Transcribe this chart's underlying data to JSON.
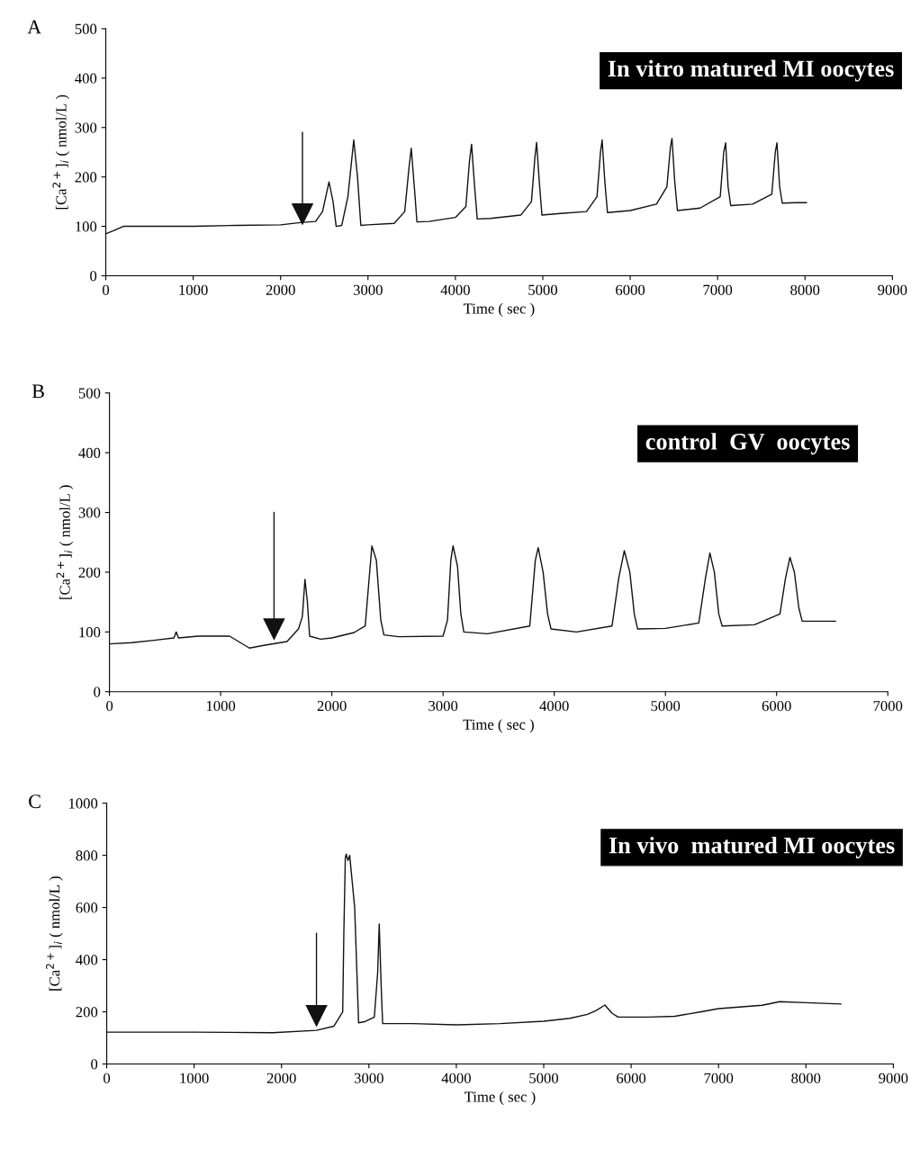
{
  "chart_data": [
    {
      "type": "line",
      "title": "In vitro matured MI oocytes",
      "xlabel": "Time ( sec )",
      "ylabel": "[Ca$^{2+}$]$_{i}$ ( nmol/L )",
      "xlim": [
        0,
        9000
      ],
      "xticks": [
        0,
        1000,
        2000,
        3000,
        4000,
        5000,
        6000,
        7000,
        8000,
        9000
      ],
      "ylim": [
        0,
        500
      ],
      "yticks": [
        0,
        100,
        200,
        300,
        400,
        500
      ],
      "grid": false,
      "legend": false,
      "annotations": [
        "A"
      ],
      "series": [
        {
          "color": "#111111",
          "marker": "triangle",
          "x": [
            2250,
            2250
          ],
          "values": [
            290,
            125
          ]
        },
        {
          "color": "#111111",
          "x": [
            0,
            100,
            200,
            500,
            1000,
            1500,
            2000,
            2250,
            2400,
            2480,
            2554,
            2600,
            2636,
            2700,
            2770,
            2837,
            2880,
            2918,
            3000,
            3300,
            3420,
            3470,
            3495,
            3530,
            3560,
            3700,
            4000,
            4120,
            4160,
            4185,
            4220,
            4250,
            4400,
            4750,
            4870,
            4910,
            4929,
            4960,
            4990,
            5200,
            5500,
            5620,
            5660,
            5679,
            5710,
            5740,
            6000,
            6300,
            6420,
            6460,
            6478,
            6510,
            6540,
            6800,
            7030,
            7070,
            7092,
            7120,
            7150,
            7400,
            7620,
            7660,
            7679,
            7710,
            7740,
            7900,
            8016
          ],
          "values": [
            85,
            92,
            100,
            100,
            100,
            102,
            103,
            108,
            110,
            130,
            190,
            150,
            100,
            102,
            160,
            275,
            200,
            102,
            103,
            106,
            130,
            220,
            258,
            180,
            109,
            110,
            118,
            140,
            230,
            266,
            180,
            115,
            116,
            123,
            150,
            240,
            270,
            190,
            123,
            126,
            130,
            160,
            250,
            275,
            190,
            128,
            132,
            145,
            180,
            260,
            278,
            190,
            132,
            137,
            160,
            250,
            269,
            180,
            142,
            145,
            165,
            250,
            269,
            180,
            147,
            148,
            148
          ]
        }
      ]
    },
    {
      "type": "line",
      "title": "control  GV  oocytes",
      "xlabel": "Time ( sec )",
      "ylabel": "[Ca$^{2+}$]$_{i}$ ( nmol/L )",
      "xlim": [
        0,
        7000
      ],
      "xticks": [
        0,
        1000,
        2000,
        3000,
        4000,
        5000,
        6000,
        7000
      ],
      "ylim": [
        0,
        500
      ],
      "yticks": [
        0,
        100,
        200,
        300,
        400,
        500
      ],
      "grid": false,
      "legend": false,
      "annotations": [
        "B"
      ],
      "series": [
        {
          "color": "#111111",
          "marker": "triangle",
          "x": [
            1480,
            1480
          ],
          "values": [
            300,
            105
          ]
        },
        {
          "color": "#111111",
          "x": [
            0,
            200,
            400,
            580,
            600,
            620,
            800,
            1080,
            1258,
            1400,
            1597,
            1700,
            1735,
            1758,
            1780,
            1800,
            1900,
            2000,
            2200,
            2300,
            2340,
            2360,
            2400,
            2440,
            2468,
            2600,
            3000,
            3040,
            3070,
            3090,
            3130,
            3160,
            3187,
            3400,
            3780,
            3830,
            3856,
            3900,
            3940,
            3971,
            4200,
            4520,
            4580,
            4630,
            4680,
            4720,
            4750,
            5000,
            5300,
            5360,
            5400,
            5440,
            5480,
            5510,
            5800,
            6030,
            6080,
            6120,
            6160,
            6200,
            6230,
            6400,
            6530
          ],
          "values": [
            80,
            82,
            86,
            90,
            100,
            90,
            93,
            93,
            73,
            78,
            84,
            105,
            126,
            188,
            150,
            93,
            88,
            90,
            99,
            110,
            200,
            244,
            220,
            120,
            95,
            92,
            93,
            120,
            220,
            244,
            210,
            130,
            100,
            97,
            110,
            220,
            241,
            200,
            130,
            105,
            100,
            110,
            190,
            236,
            200,
            130,
            105,
            106,
            115,
            190,
            232,
            200,
            130,
            110,
            112,
            130,
            190,
            225,
            200,
            140,
            118,
            118,
            118
          ]
        }
      ]
    },
    {
      "type": "line",
      "title": "In vivo  matured MI oocytes",
      "xlabel": "Time ( sec )",
      "ylabel": "[Ca$^{2+}$]$_{i}$ ( nmol/L )",
      "xlim": [
        0,
        9000
      ],
      "xticks": [
        0,
        1000,
        2000,
        3000,
        4000,
        5000,
        6000,
        7000,
        8000,
        9000
      ],
      "ylim": [
        0,
        1000
      ],
      "yticks": [
        0,
        200,
        400,
        600,
        800,
        1000
      ],
      "grid": false,
      "legend": false,
      "annotations": [
        "C"
      ],
      "series": [
        {
          "color": "#111111",
          "marker": "triangle",
          "x": [
            2400,
            2400
          ],
          "values": [
            500,
            185
          ]
        },
        {
          "color": "#111111",
          "x": [
            0,
            1000,
            1900,
            2400,
            2600,
            2700,
            2713,
            2730,
            2740,
            2760,
            2780,
            2837,
            2882,
            2950,
            3062,
            3100,
            3118,
            3140,
            3157,
            3500,
            4000,
            4500,
            5000,
            5300,
            5500,
            5600,
            5700,
            5780,
            5850,
            6200,
            6500,
            6800,
            7000,
            7500,
            7700,
            8000,
            8400
          ],
          "values": [
            122,
            122,
            120,
            129,
            145,
            200,
            500,
            790,
            805,
            780,
            800,
            600,
            158,
            162,
            180,
            350,
            537,
            300,
            155,
            155,
            150,
            155,
            164,
            175,
            190,
            205,
            226,
            195,
            180,
            180,
            183,
            200,
            212,
            225,
            239,
            235,
            230
          ]
        }
      ]
    }
  ]
}
